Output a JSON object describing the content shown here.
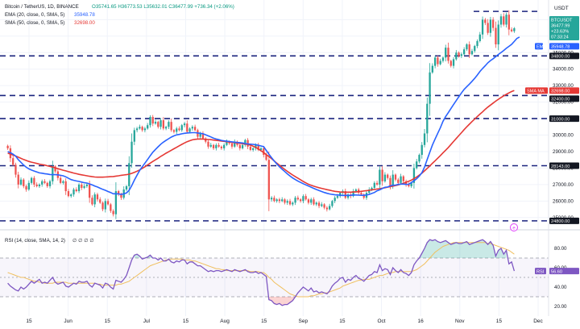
{
  "header": {
    "title": "Bitcoin / TetherUS, 1D, BINANCE",
    "ohlc": "O35741.65  H36773.53  L35632.01  C36477.99  +736.34 (+2.06%)",
    "ema_legend": "EMA (20, close, 0, SMA, 5)",
    "ema_value": "35948.78",
    "sma_legend": "SMA (50, close, 0, SMA, 5)",
    "sma_value": "32698.00",
    "rsi_legend": "RSI (14, close, SMA, 14, 2)",
    "rsi_values": "∅ ∅ ∅ ∅"
  },
  "price_axis": {
    "currency": "USDT",
    "ticks": [
      "37000.00",
      "36000.00",
      "35000.00",
      "34000.00",
      "33000.00",
      "32000.00",
      "31000.00",
      "30000.00",
      "29000.00",
      "28000.00",
      "27000.00",
      "26000.00",
      "25000.00"
    ]
  },
  "price_labels": {
    "last_symbol": "BTCUSDT",
    "last_price": "36477.99",
    "last_change": "+23.63%",
    "last_timer": "07:33:24",
    "ema_tag": "EMA",
    "ema_value": "35948.78",
    "sma_tag": "SMA MA",
    "sma_value": "32698.00",
    "levels": [
      "34800.00",
      "32400.00",
      "31000.00",
      "28143.00",
      "24800.00"
    ]
  },
  "rsi_axis": {
    "ticks": [
      "80.00",
      "60.00",
      "40.00",
      "20.00"
    ],
    "tag": "RSI",
    "value": "56.60"
  },
  "time_axis": {
    "labels": [
      "15",
      "Jun",
      "15",
      "Jul",
      "15",
      "Aug",
      "15",
      "Sep",
      "15",
      "Oct",
      "16",
      "Nov",
      "15",
      "Dec"
    ]
  },
  "colors": {
    "up": "#26a69a",
    "down": "#ef5350",
    "ema": "#2962ff",
    "sma": "#e53935",
    "level": "#1a237e",
    "rsi": "#7e57c2"
  },
  "chart_data": [
    {
      "type": "candlestick",
      "title": "Bitcoin / TetherUS, 1D, BINANCE",
      "ylim": [
        24500,
        37800
      ],
      "x_start": "May 1",
      "x_end": "Dec 1",
      "horizontal_levels": [
        37500,
        34800,
        32400,
        31000,
        28143,
        24800
      ],
      "closes": [
        29200,
        28600,
        28200,
        27600,
        27000,
        27300,
        26900,
        26700,
        27100,
        27400,
        27000,
        26900,
        27000,
        27200,
        27100,
        26900,
        27200,
        28100,
        27800,
        27400,
        27100,
        27200,
        26600,
        26300,
        26400,
        26700,
        26600,
        27000,
        26800,
        26900,
        27000,
        26200,
        25800,
        26400,
        26100,
        25900,
        25500,
        26000,
        25800,
        25400,
        25200,
        26600,
        26400,
        26200,
        26700,
        26900,
        28300,
        29600,
        30300,
        30400,
        30500,
        30300,
        30400,
        30600,
        31100,
        30700,
        30800,
        30500,
        30900,
        30400,
        30500,
        30800,
        30300,
        30200,
        30400,
        30300,
        30600,
        30700,
        30200,
        30400,
        30500,
        30300,
        29900,
        30100,
        29800,
        29600,
        29300,
        29400,
        29200,
        29400,
        29300,
        29200,
        29400,
        29600,
        29500,
        29300,
        29600,
        29400,
        29200,
        29400,
        29700,
        29300,
        29100,
        29200,
        29400,
        29100,
        29200,
        28800,
        28500,
        26100,
        26200,
        26000,
        26100,
        26000,
        26100,
        25900,
        26000,
        25800,
        25900,
        26200,
        26100,
        26000,
        26300,
        26100,
        25900,
        26100,
        25800,
        25900,
        25700,
        25800,
        25600,
        25500,
        25700,
        26000,
        26200,
        26300,
        26500,
        26600,
        26200,
        26400,
        26300,
        26600,
        26700,
        26500,
        26400,
        26200,
        26500,
        26700,
        26800,
        27100,
        27000,
        27900,
        27200,
        27600,
        27400,
        26900,
        27600,
        27300,
        27100,
        27500,
        27200,
        27000,
        26900,
        27100,
        28000,
        28400,
        28800,
        29400,
        30100,
        31900,
        33800,
        34200,
        34700,
        34300,
        34500,
        34700,
        35300,
        34500,
        34200,
        34600,
        35000,
        34800,
        34900,
        35200,
        35500,
        34900,
        35100,
        35400,
        35700,
        36100,
        37000,
        36800,
        36200,
        37000,
        36500,
        35500,
        36700,
        37200,
        36700,
        37300,
        36400,
        36300,
        36478
      ],
      "ema20": [
        29000,
        28930,
        28840,
        28720,
        28510,
        28350,
        28180,
        28050,
        27950,
        27880,
        27820,
        27760,
        27710,
        27690,
        27660,
        27640,
        27610,
        27600,
        27600,
        27590,
        27560,
        27530,
        27470,
        27380,
        27300,
        27260,
        27220,
        27190,
        27150,
        27110,
        27090,
        27040,
        26980,
        26910,
        26850,
        26780,
        26710,
        26650,
        26580,
        26520,
        26440,
        26440,
        26430,
        26400,
        26440,
        26490,
        26650,
        26930,
        27270,
        27570,
        27860,
        28080,
        28300,
        28520,
        28750,
        28960,
        29130,
        29290,
        29450,
        29570,
        29680,
        29780,
        29880,
        29950,
        30010,
        30040,
        30080,
        30110,
        30130,
        30140,
        30150,
        30150,
        30130,
        30110,
        30080,
        30020,
        29950,
        29890,
        29810,
        29760,
        29720,
        29680,
        29650,
        29630,
        29610,
        29590,
        29570,
        29550,
        29540,
        29520,
        29490,
        29460,
        29450,
        29440,
        29420,
        29380,
        29340,
        29300,
        29070,
        28840,
        28630,
        28430,
        28250,
        28080,
        27930,
        27790,
        27650,
        27520,
        27400,
        27300,
        27210,
        27130,
        27050,
        26980,
        26910,
        26840,
        26770,
        26700,
        26640,
        26580,
        26520,
        26470,
        26430,
        26400,
        26380,
        26370,
        26360,
        26340,
        26350,
        26340,
        26350,
        26370,
        26370,
        26360,
        26350,
        26350,
        26370,
        26400,
        26460,
        26520,
        26620,
        26680,
        26760,
        26830,
        26850,
        26920,
        26960,
        26970,
        27010,
        27030,
        27030,
        27010,
        27020,
        27120,
        27230,
        27350,
        27510,
        27720,
        28060,
        28520,
        28970,
        29400,
        29760,
        30110,
        30450,
        30830,
        31120,
        31360,
        31610,
        31850,
        32090,
        32330,
        32560,
        32770,
        32930,
        33090,
        33260,
        33440,
        33640,
        33860,
        34040,
        34200,
        34380,
        34520,
        34630,
        34760,
        34890,
        35010,
        35130,
        35260,
        35380,
        35500,
        35680,
        35860,
        35949
      ],
      "sma50": [
        28900,
        28850,
        28790,
        28730,
        28660,
        28590,
        28520,
        28460,
        28400,
        28360,
        28320,
        28280,
        28240,
        28210,
        28180,
        28140,
        28100,
        28060,
        28010,
        27960,
        27920,
        27870,
        27830,
        27780,
        27740,
        27700,
        27660,
        27620,
        27590,
        27560,
        27530,
        27500,
        27480,
        27460,
        27450,
        27450,
        27450,
        27460,
        27470,
        27480,
        27490,
        27510,
        27530,
        27560,
        27580,
        27600,
        27630,
        27680,
        27740,
        27810,
        27890,
        27980,
        28080,
        28190,
        28300,
        28400,
        28500,
        28600,
        28710,
        28800,
        28900,
        28990,
        29080,
        29170,
        29260,
        29350,
        29440,
        29520,
        29600,
        29660,
        29710,
        29740,
        29760,
        29760,
        29760,
        29740,
        29730,
        29720,
        29700,
        29680,
        29660,
        29640,
        29620,
        29600,
        29580,
        29560,
        29540,
        29520,
        29500,
        29480,
        29460,
        29430,
        29390,
        29330,
        29250,
        29160,
        29050,
        28940,
        28820,
        28700,
        28570,
        28430,
        28300,
        28170,
        28040,
        27920,
        27800,
        27690,
        27580,
        27480,
        27390,
        27290,
        27190,
        27100,
        27020,
        26960,
        26900,
        26850,
        26810,
        26770,
        26730,
        26690,
        26660,
        26620,
        26590,
        26570,
        26550,
        26540,
        26540,
        26540,
        26540,
        26550,
        26560,
        26570,
        26590,
        26610,
        26630,
        26650,
        26680,
        26700,
        26730,
        26750,
        26780,
        26810,
        26840,
        26870,
        26900,
        26940,
        26980,
        27030,
        27080,
        27140,
        27200,
        27270,
        27360,
        27460,
        27570,
        27690,
        27830,
        27980,
        28130,
        28290,
        28440,
        28600,
        28760,
        28920,
        29080,
        29250,
        29430,
        29610,
        29790,
        29970,
        30150,
        30330,
        30500,
        30660,
        30820,
        30970,
        31120,
        31270,
        31410,
        31560,
        31700,
        31820,
        31940,
        32060,
        32170,
        32280,
        32380,
        32470,
        32560,
        32640,
        32698
      ]
    },
    {
      "type": "line",
      "title": "RSI (14, close, SMA, 14, 2)",
      "ylim": [
        15,
        95
      ],
      "bands": [
        70,
        50,
        30
      ],
      "rsi": [
        44,
        41,
        39,
        37,
        36,
        40,
        38,
        40,
        43,
        46,
        44,
        46,
        48,
        44,
        45,
        44,
        47,
        50,
        45,
        43,
        44,
        45,
        41,
        40,
        42,
        44,
        43,
        46,
        45,
        45,
        46,
        42,
        40,
        44,
        43,
        42,
        39,
        44,
        43,
        40,
        38,
        47,
        46,
        45,
        48,
        52,
        60,
        68,
        73,
        74,
        72,
        69,
        70,
        71,
        73,
        70,
        70,
        68,
        70,
        67,
        67,
        69,
        66,
        65,
        67,
        66,
        68,
        68,
        64,
        66,
        66,
        64,
        62,
        62,
        60,
        58,
        56,
        57,
        56,
        57,
        57,
        56,
        57,
        58,
        57,
        56,
        58,
        57,
        56,
        57,
        58,
        56,
        55,
        55,
        56,
        54,
        55,
        53,
        51,
        27,
        26,
        23,
        22,
        23,
        21,
        22,
        22,
        24,
        26,
        30,
        34,
        37,
        40,
        38,
        36,
        39,
        35,
        36,
        34,
        35,
        34,
        33,
        36,
        41,
        44,
        46,
        49,
        50,
        45,
        48,
        47,
        50,
        52,
        49,
        48,
        46,
        49,
        52,
        53,
        56,
        55,
        63,
        57,
        59,
        58,
        53,
        60,
        57,
        55,
        58,
        55,
        54,
        52,
        55,
        63,
        67,
        70,
        75,
        80,
        86,
        89,
        88,
        89,
        87,
        86,
        87,
        88,
        86,
        84,
        85,
        86,
        85,
        85,
        86,
        87,
        84,
        85,
        86,
        87,
        88,
        89,
        87,
        84,
        87,
        83,
        72,
        78,
        80,
        74,
        78,
        64,
        66,
        56.6
      ],
      "rsi_sma": [
        55,
        54,
        53,
        52,
        51,
        50,
        50,
        49,
        48,
        47,
        46,
        46,
        45,
        45,
        44,
        44,
        44,
        44,
        45,
        45,
        45,
        45,
        45,
        44,
        44,
        44,
        44,
        44,
        44,
        44,
        44,
        44,
        44,
        44,
        43,
        43,
        42,
        42,
        42,
        42,
        42,
        42,
        43,
        43,
        44,
        45,
        46,
        48,
        50,
        52,
        54,
        56,
        58,
        60,
        62,
        63,
        64,
        65,
        66,
        67,
        68,
        68,
        69,
        69,
        69,
        69,
        69,
        68,
        68,
        68,
        67,
        67,
        66,
        65,
        64,
        63,
        62,
        61,
        60,
        59,
        59,
        58,
        58,
        57,
        57,
        57,
        57,
        57,
        57,
        57,
        57,
        57,
        56,
        56,
        56,
        56,
        55,
        55,
        53,
        50,
        48,
        45,
        43,
        41,
        39,
        37,
        35,
        33,
        32,
        31,
        30,
        30,
        30,
        30,
        30,
        31,
        31,
        32,
        33,
        33,
        34,
        34,
        35,
        36,
        37,
        38,
        39,
        41,
        42,
        43,
        44,
        45,
        46,
        47,
        47,
        48,
        48,
        48,
        49,
        50,
        51,
        52,
        52,
        53,
        54,
        55,
        55,
        56,
        56,
        56,
        56,
        56,
        56,
        56,
        57,
        58,
        60,
        62,
        64,
        67,
        70,
        73,
        76,
        78,
        80,
        82,
        83,
        84,
        85,
        86,
        86,
        86,
        86,
        86,
        86,
        86,
        86,
        86,
        86,
        86,
        86,
        86,
        85,
        85,
        84,
        83,
        82,
        81,
        80,
        79,
        78,
        76,
        74
      ]
    }
  ]
}
